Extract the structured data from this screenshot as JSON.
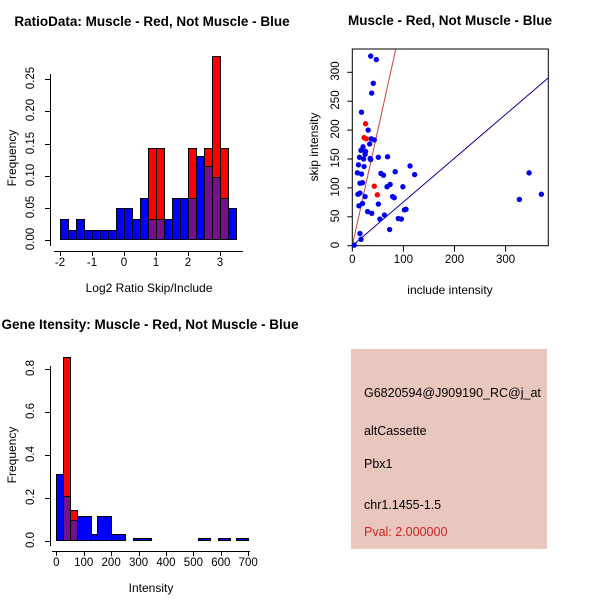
{
  "chart_data": [
    {
      "id": "ratio_histogram",
      "type": "bar",
      "title": "RatioData: Muscle - Red, Not Muscle - Blue",
      "xlabel": "Log2 Ratio Skip/Include",
      "ylabel": "Frequency",
      "bin_start": -2,
      "bin_width": 0.25,
      "xlim": [
        -2,
        3.5
      ],
      "ylim": [
        0,
        0.2857
      ],
      "xticks": [
        "-2",
        "-1",
        "0",
        "1",
        "2",
        "3"
      ],
      "yticks": [
        "0.00",
        "0.05",
        "0.10",
        "0.15",
        "0.20",
        "0.25"
      ],
      "grid": false,
      "series": [
        {
          "name": "Not Muscle",
          "color": "#0000FF",
          "values": [
            0.033,
            0.016,
            0.033,
            0.016,
            0.016,
            0.016,
            0.016,
            0.049,
            0.049,
            0.033,
            0.066,
            0.033,
            0.033,
            0.033,
            0.066,
            0.066,
            0.066,
            0.131,
            0.115,
            0.098,
            0.066,
            0.049
          ]
        },
        {
          "name": "Muscle",
          "color": "#FF0000",
          "values": [
            0,
            0,
            0,
            0,
            0,
            0,
            0,
            0,
            0,
            0,
            0,
            0.143,
            0.143,
            0,
            0,
            0,
            0.143,
            0,
            0.143,
            0.286,
            0.143,
            0
          ]
        }
      ],
      "overlap_color": "#75128B"
    },
    {
      "id": "intensity_scatter",
      "type": "scatter",
      "title": "Muscle - Red, Not Muscle - Blue",
      "xlabel": "include intensity",
      "ylabel": "skip intensity",
      "xlim": [
        0,
        384
      ],
      "ylim": [
        0,
        342
      ],
      "xticks": [
        0,
        100,
        200,
        300
      ],
      "yticks": [
        0,
        50,
        100,
        150,
        200,
        250,
        300
      ],
      "grid": false,
      "series": [
        {
          "name": "Not Muscle",
          "color": "#0000EE",
          "points": [
            [
              36,
              328
            ],
            [
              47,
              322
            ],
            [
              41,
              281
            ],
            [
              38,
              264
            ],
            [
              18,
              231
            ],
            [
              31,
              200
            ],
            [
              37,
              185
            ],
            [
              43,
              183
            ],
            [
              34,
              176
            ],
            [
              21,
              171
            ],
            [
              17,
              165
            ],
            [
              26,
              163
            ],
            [
              25,
              158
            ],
            [
              36,
              149
            ],
            [
              14,
              153
            ],
            [
              22,
              150
            ],
            [
              35,
              151
            ],
            [
              51,
              153
            ],
            [
              69,
              154
            ],
            [
              12,
              140
            ],
            [
              23,
              137
            ],
            [
              113,
              138
            ],
            [
              10,
              126
            ],
            [
              18,
              124
            ],
            [
              61,
              122
            ],
            [
              122,
              123
            ],
            [
              56,
              125
            ],
            [
              84,
              128
            ],
            [
              15,
              108
            ],
            [
              20,
              109
            ],
            [
              74,
              106
            ],
            [
              99,
              102
            ],
            [
              68,
              102
            ],
            [
              15,
              91
            ],
            [
              11,
              89
            ],
            [
              25,
              85
            ],
            [
              82,
              83
            ],
            [
              79,
              85
            ],
            [
              20,
              73
            ],
            [
              13,
              69
            ],
            [
              51,
              72
            ],
            [
              102,
              62
            ],
            [
              105,
              63
            ],
            [
              30,
              59
            ],
            [
              38,
              56
            ],
            [
              63,
              53
            ],
            [
              90,
              47
            ],
            [
              54,
              46
            ],
            [
              96,
              46
            ],
            [
              73,
              28
            ],
            [
              15,
              21
            ],
            [
              17,
              11
            ],
            [
              4,
              1
            ],
            [
              346,
              126
            ],
            [
              327,
              80
            ],
            [
              370,
              89
            ]
          ]
        },
        {
          "name": "Muscle",
          "color": "#FF0000",
          "points": [
            [
              26,
              211
            ],
            [
              23,
              187
            ],
            [
              27,
              185
            ],
            [
              43,
              103
            ],
            [
              49,
              88
            ]
          ]
        }
      ],
      "lines": [
        {
          "name": "muscle-line",
          "color": "#C84040",
          "from": [
            0,
            0
          ],
          "to": [
            85,
            340
          ]
        },
        {
          "name": "not-muscle-line",
          "color": "#00008B",
          "from": [
            0,
            0
          ],
          "to": [
            383,
            290
          ]
        }
      ]
    },
    {
      "id": "gene_intensity_histogram",
      "type": "bar",
      "title": "Gene Itensity: Muscle - Red, Not Muscle - Blue",
      "xlabel": "Intensity",
      "ylabel": "Frequency",
      "xlim": [
        0,
        720
      ],
      "ylim": [
        0,
        0.857
      ],
      "xticks": [
        0,
        100,
        200,
        300,
        400,
        500,
        600,
        700
      ],
      "yticks": [
        "0.0",
        "0.2",
        "0.4",
        "0.6",
        "0.8"
      ],
      "grid": false,
      "colors": {
        "blue": "#0000FF",
        "red": "#FF0000",
        "overlap": "#75128B"
      },
      "bars": {
        "blue": [
          [
            0,
            25,
            0.31
          ],
          [
            25,
            50,
            0.21
          ],
          [
            50,
            75,
            0.1
          ],
          [
            75,
            125,
            0.115
          ],
          [
            125,
            150,
            0.033
          ],
          [
            150,
            200,
            0.115
          ],
          [
            200,
            250,
            0.033
          ],
          [
            278,
            344,
            0.016
          ],
          [
            516,
            561,
            0.016
          ],
          [
            589,
            632,
            0.016
          ],
          [
            656,
            699,
            0.016
          ]
        ],
        "red": [
          [
            25,
            50,
            0.857
          ],
          [
            50,
            75,
            0.143
          ]
        ],
        "overlap": [
          [
            25,
            50,
            0.21
          ],
          [
            50,
            75,
            0.1
          ]
        ]
      }
    }
  ],
  "info_panel": {
    "bg_color": "#E9C7BF",
    "text_color": "#000000",
    "pval_color": "#CC2222",
    "probe_id": "G6820594@J909190_RC@j_at",
    "splice_type": "altCassette",
    "gene": "Pbx1",
    "location": "chr1.1455-1.5",
    "pval_label": "Pval: 2.000000"
  }
}
